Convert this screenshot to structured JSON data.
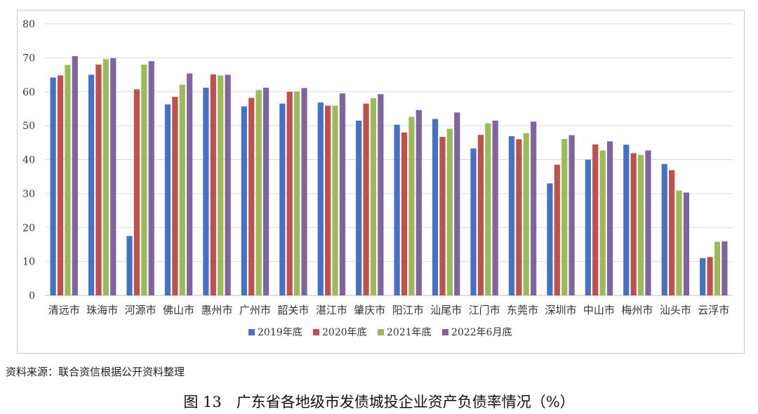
{
  "chart_data": {
    "type": "bar",
    "title": "",
    "xlabel": "",
    "ylabel": "",
    "ylim": [
      0,
      80
    ],
    "yticks": [
      0,
      10,
      20,
      30,
      40,
      50,
      60,
      70,
      80
    ],
    "grid": true,
    "legend_position": "bottom",
    "categories": [
      "清远市",
      "珠海市",
      "河源市",
      "佛山市",
      "惠州市",
      "广州市",
      "韶关市",
      "湛江市",
      "肇庆市",
      "阳江市",
      "汕尾市",
      "江门市",
      "东莞市",
      "深圳市",
      "中山市",
      "梅州市",
      "汕头市",
      "云浮市"
    ],
    "series": [
      {
        "name": "2019年底",
        "color": "#4472C4",
        "values": [
          64.2,
          65.0,
          17.5,
          56.3,
          61.2,
          55.7,
          56.5,
          56.8,
          51.5,
          50.3,
          52.0,
          43.3,
          46.9,
          33.0,
          40.0,
          44.4,
          38.7,
          11.0
        ]
      },
      {
        "name": "2020年底",
        "color": "#C0504D",
        "values": [
          64.8,
          68.0,
          60.7,
          58.5,
          65.1,
          58.2,
          60.0,
          55.9,
          56.5,
          48.0,
          46.7,
          47.3,
          46.0,
          38.5,
          44.5,
          41.9,
          36.9,
          11.3
        ]
      },
      {
        "name": "2021年底",
        "color": "#9BBB59",
        "values": [
          67.9,
          69.6,
          68.0,
          62.1,
          64.8,
          60.5,
          60.1,
          55.9,
          58.1,
          52.6,
          49.1,
          50.7,
          47.8,
          46.1,
          42.7,
          41.4,
          30.9,
          15.8
        ]
      },
      {
        "name": "2022年6月底",
        "color": "#8064A2",
        "values": [
          70.5,
          69.9,
          69.0,
          65.4,
          65.0,
          61.2,
          61.1,
          59.5,
          59.3,
          54.6,
          53.9,
          51.5,
          51.2,
          47.2,
          45.4,
          42.7,
          30.3,
          15.9
        ]
      }
    ]
  },
  "source_note": "资料来源：联合资信根据公开资料整理",
  "caption": "图 13　广东省各地级市发债城投企业资产负债率情况（%）",
  "colors": {
    "grid": "#d9d9d9",
    "axis": "#bfbfbf",
    "tick_text": "#333333"
  }
}
